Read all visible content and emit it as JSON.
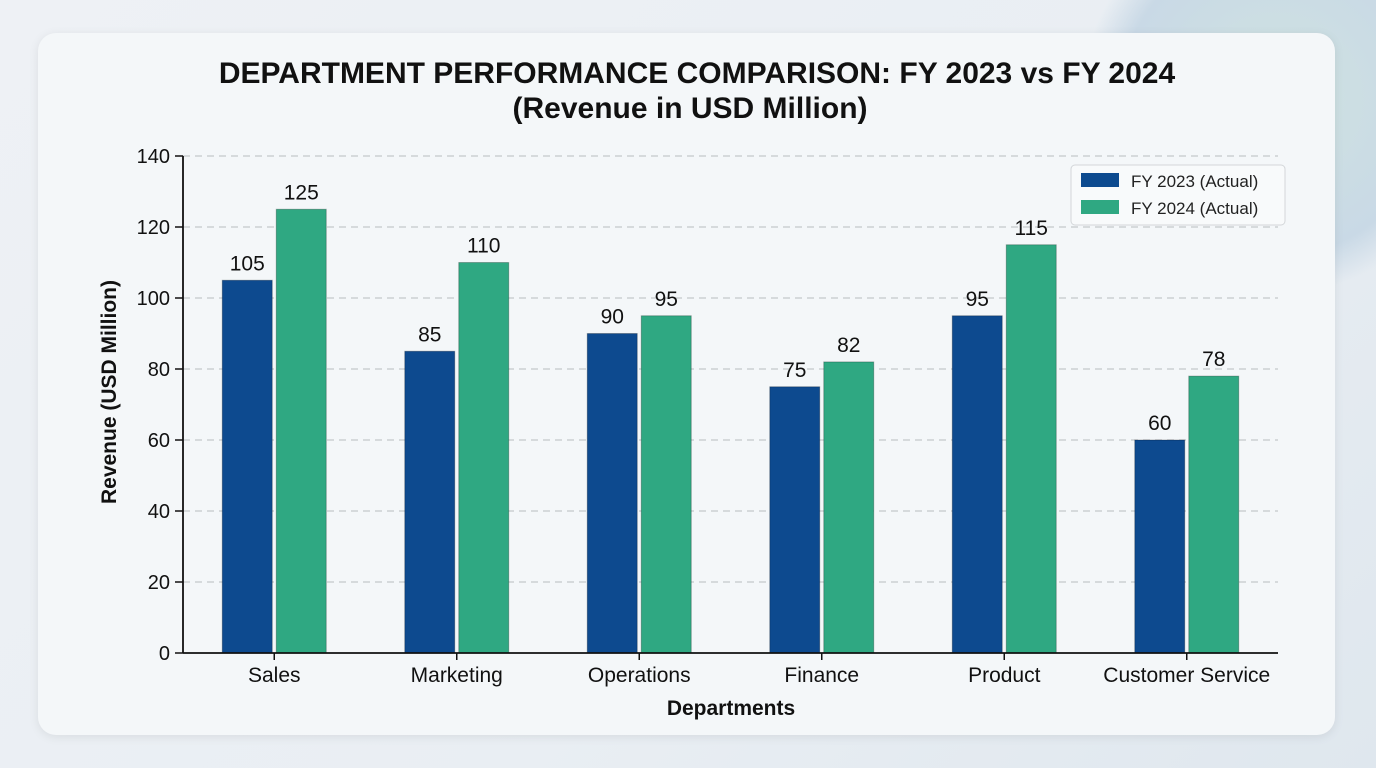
{
  "chart_data": {
    "type": "bar",
    "title": "DEPARTMENT PERFORMANCE COMPARISON: FY 2023 vs FY 2024",
    "subtitle": "(Revenue in USD Million)",
    "xlabel": "Departments",
    "ylabel": "Revenue (USD Million)",
    "ylim": [
      0,
      140
    ],
    "yticks": [
      0,
      20,
      40,
      60,
      80,
      100,
      120,
      140
    ],
    "grid": true,
    "legend_position": "top-right",
    "categories": [
      "Sales",
      "Marketing",
      "Operations",
      "Finance",
      "Product",
      "Customer Service"
    ],
    "series": [
      {
        "name": "FY 2023 (Actual)",
        "color": "#0d4a8f",
        "values": [
          105,
          85,
          90,
          75,
          95,
          60
        ]
      },
      {
        "name": "FY 2024 (Actual)",
        "color": "#2fa882",
        "values": [
          125,
          110,
          95,
          82,
          115,
          78
        ]
      }
    ]
  }
}
